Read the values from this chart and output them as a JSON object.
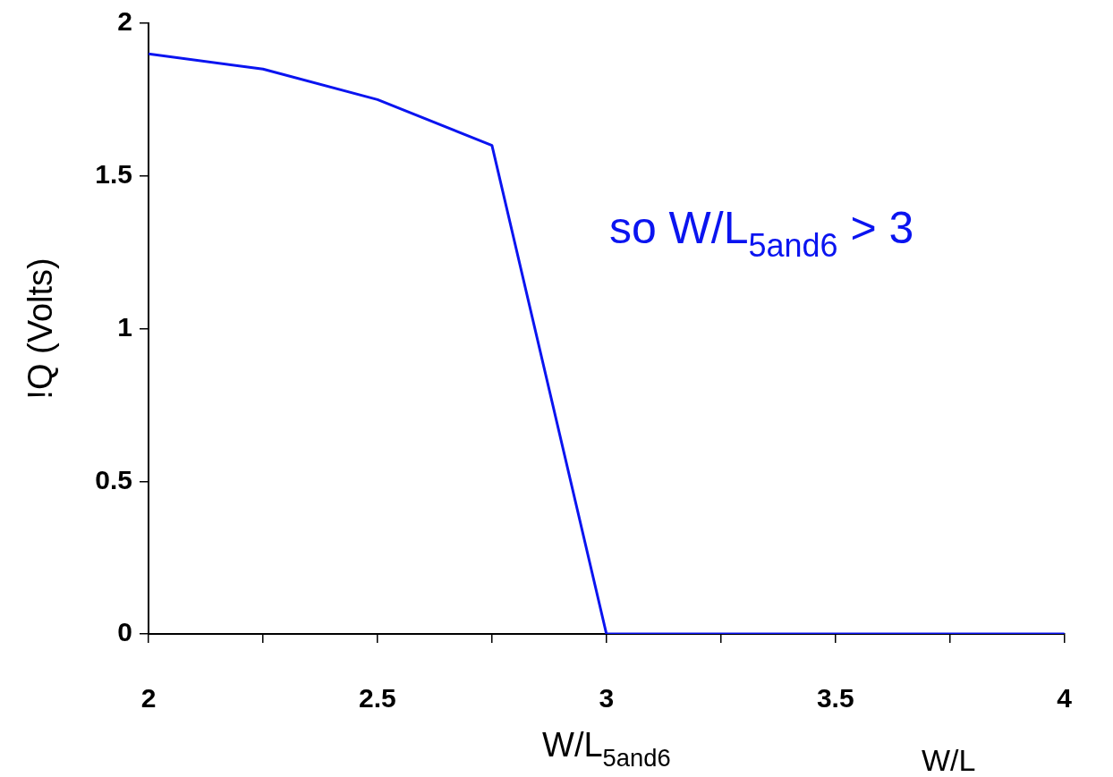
{
  "chart_data": {
    "type": "line",
    "xlabel": "W/L$_{5and6}$",
    "ylabel": "!Q (Volts)",
    "x": [
      2,
      2.25,
      2.5,
      2.75,
      3,
      3.25,
      3.5,
      3.75,
      4
    ],
    "series": [
      {
        "color": "#0a14f0",
        "values": [
          1.9,
          1.85,
          1.75,
          1.6,
          0,
          0,
          0,
          0,
          0
        ]
      }
    ],
    "xlim": [
      2,
      4
    ],
    "xticks": [
      2,
      {
        "value": 2.25,
        "label": null
      },
      2.5,
      {
        "value": 2.75,
        "label": null
      },
      3,
      {
        "value": 3.25,
        "label": null
      },
      3.5,
      {
        "value": 3.75,
        "label": null
      },
      4
    ],
    "ylim": [
      0,
      2
    ],
    "yticks": [
      0,
      0.5,
      1,
      1.5,
      2
    ],
    "grid": false,
    "legend": false,
    "marker": "none",
    "line_style": "solid",
    "annotations": [
      "so W/L$_{5and6}$ > 3",
      "W/L"
    ]
  }
}
